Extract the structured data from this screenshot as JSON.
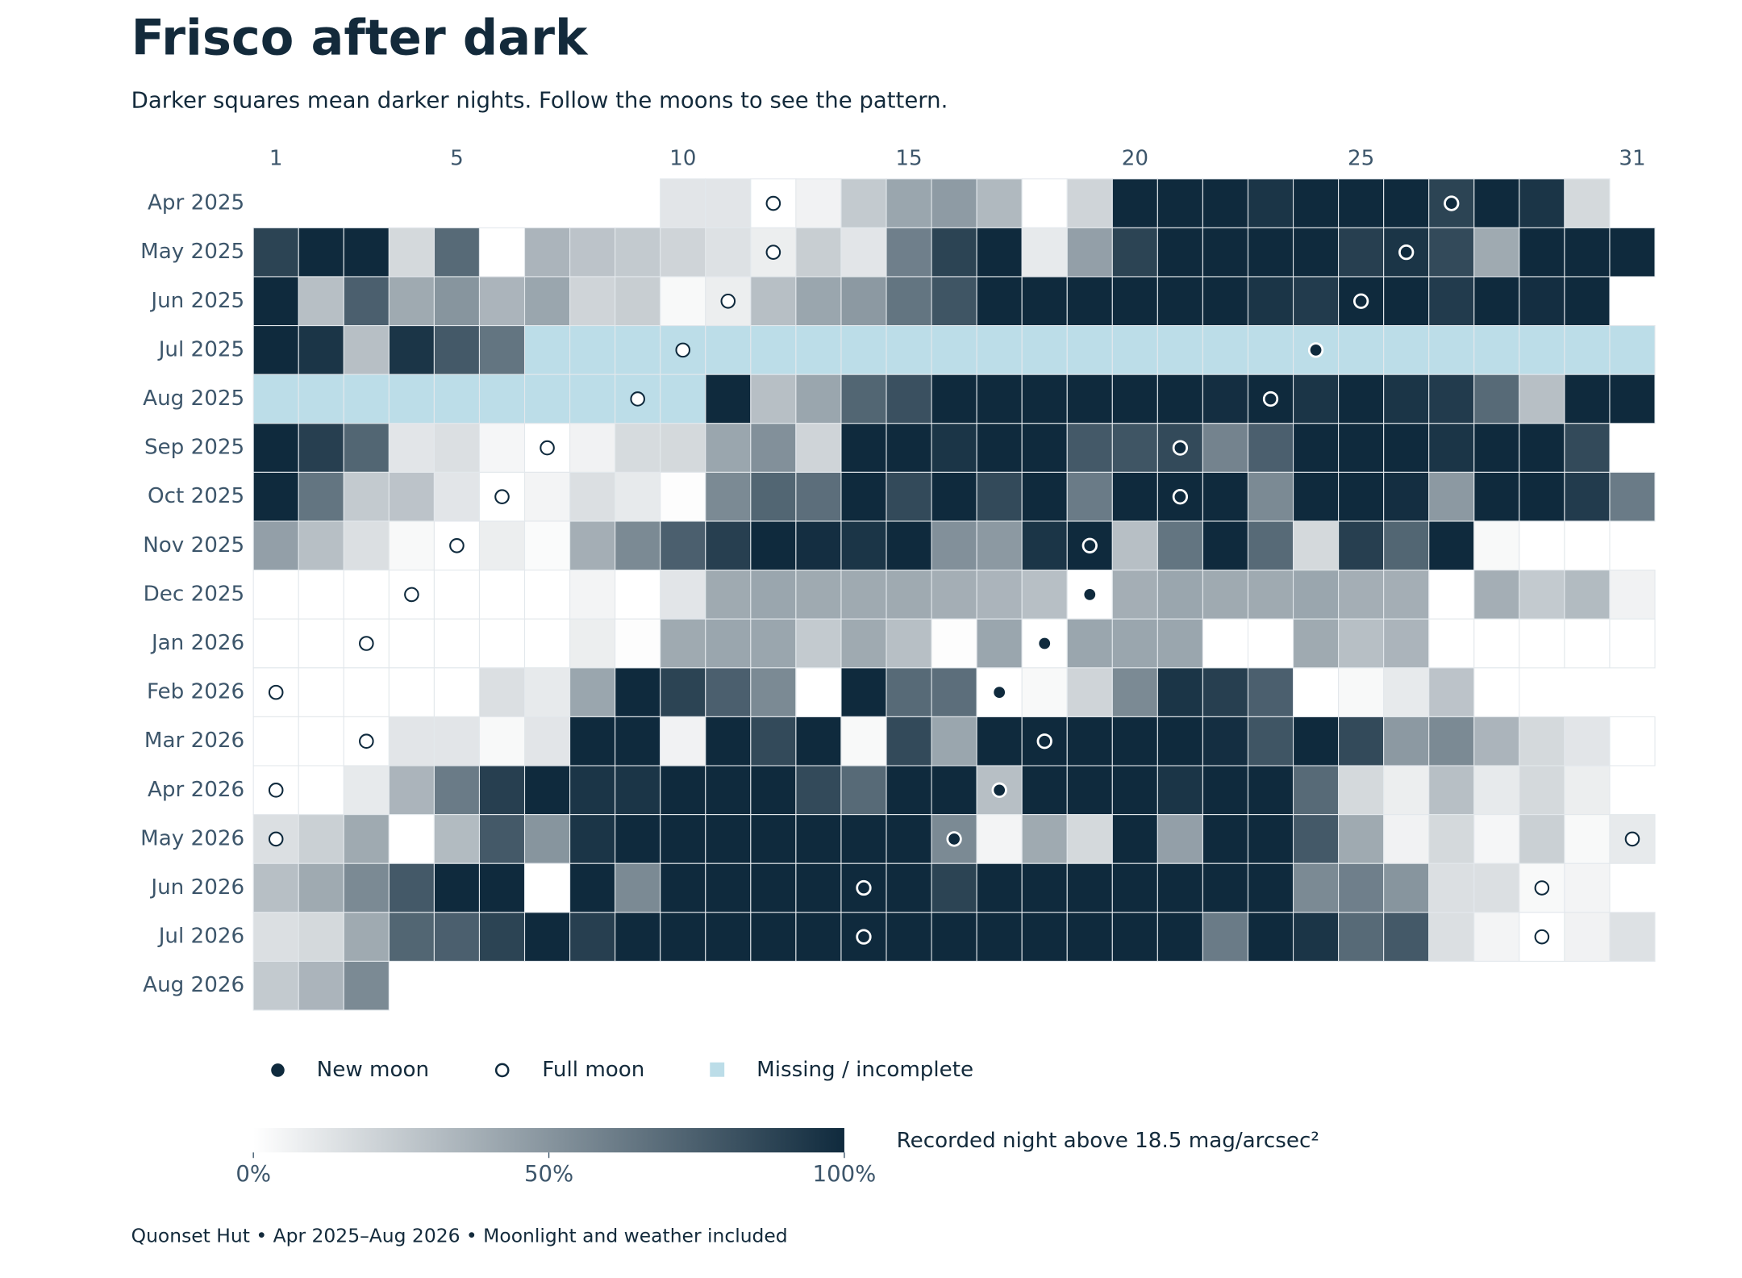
{
  "chart_data": {
    "type": "heatmap",
    "title": "Frisco after dark",
    "subtitle": "Darker squares mean darker nights. Follow the moons to see the pattern.",
    "caption": "Quonset Hut • Apr 2025–Aug 2026 • Moonlight and weather included",
    "xlim": [
      1,
      31
    ],
    "xticks": [
      1,
      5,
      10,
      15,
      20,
      25,
      31
    ],
    "colors": {
      "low": "#ffffff",
      "high": "#0f2a3d",
      "missing": "#bcdde8",
      "text": "#132a3b",
      "muted": "#3d566b"
    },
    "legend": [
      "New moon",
      "Full moon",
      "Missing / incomplete"
    ],
    "colorbar": {
      "label": "Recorded night above 18.5 mag/arcsec²",
      "lim": [
        0,
        100
      ],
      "ticks": [
        {
          "value": 0,
          "label": "0%"
        },
        {
          "value": 50,
          "label": "50%"
        },
        {
          "value": 100,
          "label": "100%"
        }
      ]
    },
    "rows": [
      {
        "label": "Apr 2025",
        "new_moon": [
          27
        ],
        "full_moon": [
          12
        ],
        "values": [
          null,
          null,
          null,
          null,
          null,
          null,
          null,
          null,
          null,
          12,
          12,
          0,
          6,
          25,
          42,
          47,
          33,
          0,
          20,
          100,
          100,
          100,
          95,
          100,
          100,
          100,
          88,
          100,
          95,
          18,
          null
        ]
      },
      {
        "label": "May 2025",
        "new_moon": [
          26
        ],
        "full_moon": [
          12
        ],
        "values": [
          88,
          100,
          100,
          18,
          70,
          0,
          35,
          28,
          25,
          20,
          14,
          8,
          23,
          12,
          60,
          88,
          100,
          10,
          45,
          88,
          100,
          100,
          100,
          100,
          90,
          95,
          85,
          40,
          100,
          100,
          100
        ]
      },
      {
        "label": "Jun 2025",
        "new_moon": [
          25
        ],
        "full_moon": [
          11
        ],
        "values": [
          100,
          30,
          75,
          40,
          50,
          35,
          42,
          20,
          23,
          3,
          8,
          30,
          42,
          48,
          65,
          80,
          100,
          100,
          100,
          100,
          100,
          100,
          95,
          92,
          100,
          100,
          92,
          100,
          98,
          100,
          null
        ]
      },
      {
        "label": "Jul 2025",
        "new_moon": [
          24
        ],
        "full_moon": [
          10
        ],
        "missing": [
          7,
          8,
          9,
          10,
          11,
          12,
          13,
          14,
          15,
          16,
          17,
          18,
          19,
          20,
          21,
          22,
          23,
          24,
          25,
          26,
          27,
          28,
          29,
          30,
          31
        ],
        "values": [
          100,
          95,
          30,
          95,
          78,
          65,
          null,
          null,
          null,
          null,
          null,
          null,
          null,
          null,
          null,
          null,
          null,
          null,
          null,
          null,
          null,
          null,
          null,
          null,
          null,
          null,
          null,
          null,
          null,
          null,
          null
        ]
      },
      {
        "label": "Aug 2025",
        "new_moon": [
          23
        ],
        "full_moon": [
          9
        ],
        "missing": [
          1,
          2,
          3,
          4,
          5,
          6,
          7,
          8,
          9,
          10
        ],
        "values": [
          null,
          null,
          null,
          null,
          null,
          null,
          null,
          null,
          null,
          null,
          100,
          30,
          42,
          72,
          82,
          100,
          100,
          100,
          100,
          100,
          100,
          98,
          100,
          95,
          100,
          95,
          92,
          70,
          30,
          100,
          100
        ]
      },
      {
        "label": "Sep 2025",
        "new_moon": [
          21
        ],
        "full_moon": [
          7
        ],
        "values": [
          100,
          90,
          72,
          12,
          15,
          4,
          0,
          6,
          17,
          18,
          42,
          52,
          20,
          100,
          100,
          95,
          100,
          100,
          78,
          80,
          85,
          58,
          75,
          100,
          100,
          100,
          95,
          100,
          100,
          85,
          null
        ]
      },
      {
        "label": "Oct 2025",
        "new_moon": [
          21
        ],
        "full_moon": [
          6
        ],
        "values": [
          100,
          65,
          25,
          28,
          12,
          0,
          5,
          15,
          10,
          1,
          55,
          72,
          68,
          100,
          85,
          100,
          85,
          100,
          62,
          100,
          100,
          100,
          55,
          100,
          100,
          98,
          48,
          100,
          100,
          92,
          62
        ]
      },
      {
        "label": "Nov 2025",
        "new_moon": [
          19
        ],
        "full_moon": [
          5
        ],
        "values": [
          45,
          30,
          15,
          3,
          0,
          8,
          2,
          38,
          55,
          75,
          90,
          100,
          98,
          95,
          100,
          52,
          48,
          95,
          100,
          30,
          65,
          100,
          70,
          18,
          90,
          72,
          100,
          3,
          0,
          0,
          null
        ]
      },
      {
        "label": "Dec 2025",
        "new_moon": [
          19
        ],
        "full_moon": [
          4
        ],
        "values": [
          0,
          0,
          0,
          0,
          0,
          0,
          0,
          5,
          0,
          12,
          40,
          42,
          40,
          40,
          40,
          38,
          35,
          30,
          0,
          38,
          42,
          40,
          40,
          42,
          38,
          38,
          0,
          38,
          25,
          32,
          6
        ]
      },
      {
        "label": "Jan 2026",
        "new_moon": [
          18
        ],
        "full_moon": [
          3
        ],
        "values": [
          0,
          0,
          0,
          0,
          0,
          0,
          0,
          8,
          1,
          40,
          42,
          42,
          25,
          40,
          30,
          1,
          42,
          0,
          42,
          42,
          42,
          0,
          0,
          40,
          30,
          35,
          0,
          0,
          0,
          0,
          0
        ]
      },
      {
        "label": "Feb 2026",
        "new_moon": [
          17
        ],
        "full_moon": [
          1
        ],
        "values": [
          0,
          0,
          0,
          0,
          0,
          15,
          10,
          42,
          100,
          88,
          75,
          55,
          0,
          100,
          70,
          68,
          0,
          3,
          20,
          55,
          95,
          90,
          75,
          0,
          3,
          10,
          28,
          0,
          null,
          null,
          null
        ]
      },
      {
        "label": "Mar 2026",
        "new_moon": [
          18
        ],
        "full_moon": [
          3
        ],
        "values": [
          0,
          0,
          0,
          12,
          12,
          3,
          12,
          100,
          100,
          6,
          100,
          85,
          100,
          3,
          85,
          42,
          100,
          100,
          100,
          100,
          100,
          98,
          80,
          100,
          85,
          48,
          55,
          35,
          18,
          12,
          0
        ]
      },
      {
        "label": "Apr 2026",
        "new_moon": [
          17
        ],
        "full_moon": [
          1
        ],
        "values": [
          0,
          0,
          10,
          35,
          62,
          90,
          100,
          95,
          95,
          100,
          100,
          100,
          85,
          70,
          100,
          100,
          30,
          100,
          100,
          100,
          95,
          100,
          100,
          70,
          18,
          8,
          30,
          10,
          18,
          8,
          null
        ]
      },
      {
        "label": "May 2026",
        "new_moon": [
          16
        ],
        "full_moon": [
          1,
          31
        ],
        "values": [
          15,
          22,
          40,
          0,
          32,
          78,
          50,
          95,
          100,
          100,
          100,
          100,
          100,
          100,
          100,
          55,
          5,
          40,
          18,
          100,
          45,
          100,
          100,
          78,
          40,
          6,
          18,
          4,
          22,
          3,
          10
        ]
      },
      {
        "label": "Jun 2026",
        "new_moon": [
          14
        ],
        "full_moon": [
          29
        ],
        "values": [
          30,
          40,
          55,
          78,
          100,
          100,
          0,
          100,
          55,
          100,
          100,
          100,
          100,
          100,
          100,
          88,
          100,
          100,
          100,
          100,
          100,
          100,
          100,
          55,
          60,
          50,
          15,
          15,
          3,
          5,
          null
        ]
      },
      {
        "label": "Jul 2026",
        "new_moon": [
          14
        ],
        "full_moon": [
          29
        ],
        "values": [
          15,
          18,
          40,
          72,
          75,
          88,
          100,
          90,
          100,
          100,
          100,
          100,
          100,
          100,
          100,
          100,
          100,
          100,
          100,
          100,
          100,
          62,
          100,
          95,
          70,
          78,
          15,
          5,
          0,
          6,
          14
        ]
      },
      {
        "label": "Aug 2026",
        "values": [
          25,
          35,
          55,
          null,
          null,
          null,
          null,
          null,
          null,
          null,
          null,
          null,
          null,
          null,
          null,
          null,
          null,
          null,
          null,
          null,
          null,
          null,
          null,
          null,
          null,
          null,
          null,
          null,
          null,
          null,
          null
        ]
      }
    ]
  }
}
